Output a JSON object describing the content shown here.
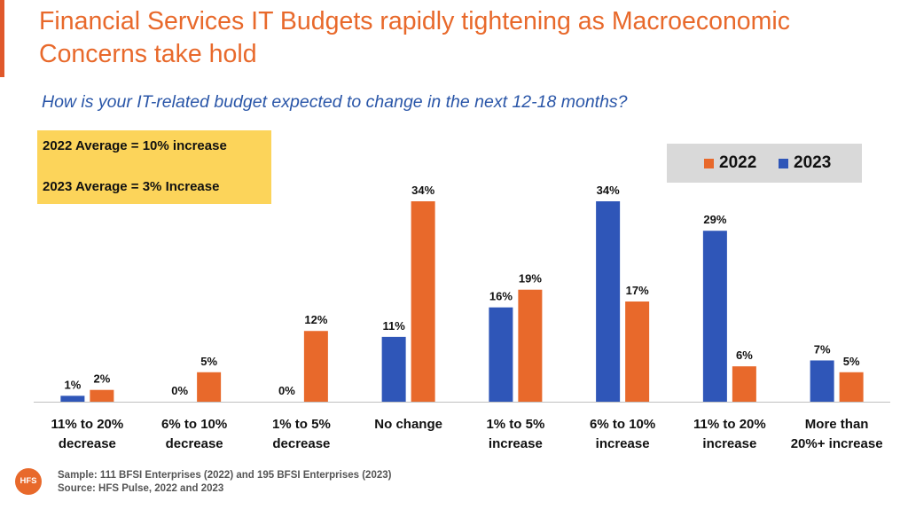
{
  "title": "Financial Services IT Budgets rapidly tightening as Macroeconomic Concerns take hold",
  "subtitle": "How is your IT-related budget expected to change in the next 12-18 months?",
  "averages": {
    "line_2022": "2022 Average = 10% increase",
    "line_2023": "2023 Average = 3% Increase"
  },
  "legend": [
    {
      "label": "2022",
      "color": "#e8692b"
    },
    {
      "label": "2023",
      "color": "#2f56b8"
    }
  ],
  "chart_data": {
    "type": "bar",
    "categories": [
      [
        "11% to 20%",
        "decrease"
      ],
      [
        "6% to 10%",
        "decrease"
      ],
      [
        "1% to 5%",
        "decrease"
      ],
      [
        "No change"
      ],
      [
        "1% to 5%",
        "increase"
      ],
      [
        "6% to 10%",
        "increase"
      ],
      [
        "11% to 20%",
        "increase"
      ],
      [
        "More than",
        "20%+ increase"
      ]
    ],
    "series": [
      {
        "name": "2023",
        "color": "#2f56b8",
        "values": [
          1,
          0,
          0,
          11,
          16,
          34,
          29,
          7
        ]
      },
      {
        "name": "2022",
        "color": "#e8692b",
        "values": [
          2,
          5,
          12,
          34,
          19,
          17,
          6,
          5
        ]
      }
    ],
    "value_suffix": "%",
    "ylim": [
      0,
      34
    ],
    "grid": false,
    "legend_position": "top-right"
  },
  "footer": {
    "sample": "Sample: 111 BFSI Enterprises (2022) and 195 BFSI Enterprises (2023)",
    "source": "Source: HFS Pulse, 2022 and 2023"
  },
  "logo_text": "HFS"
}
